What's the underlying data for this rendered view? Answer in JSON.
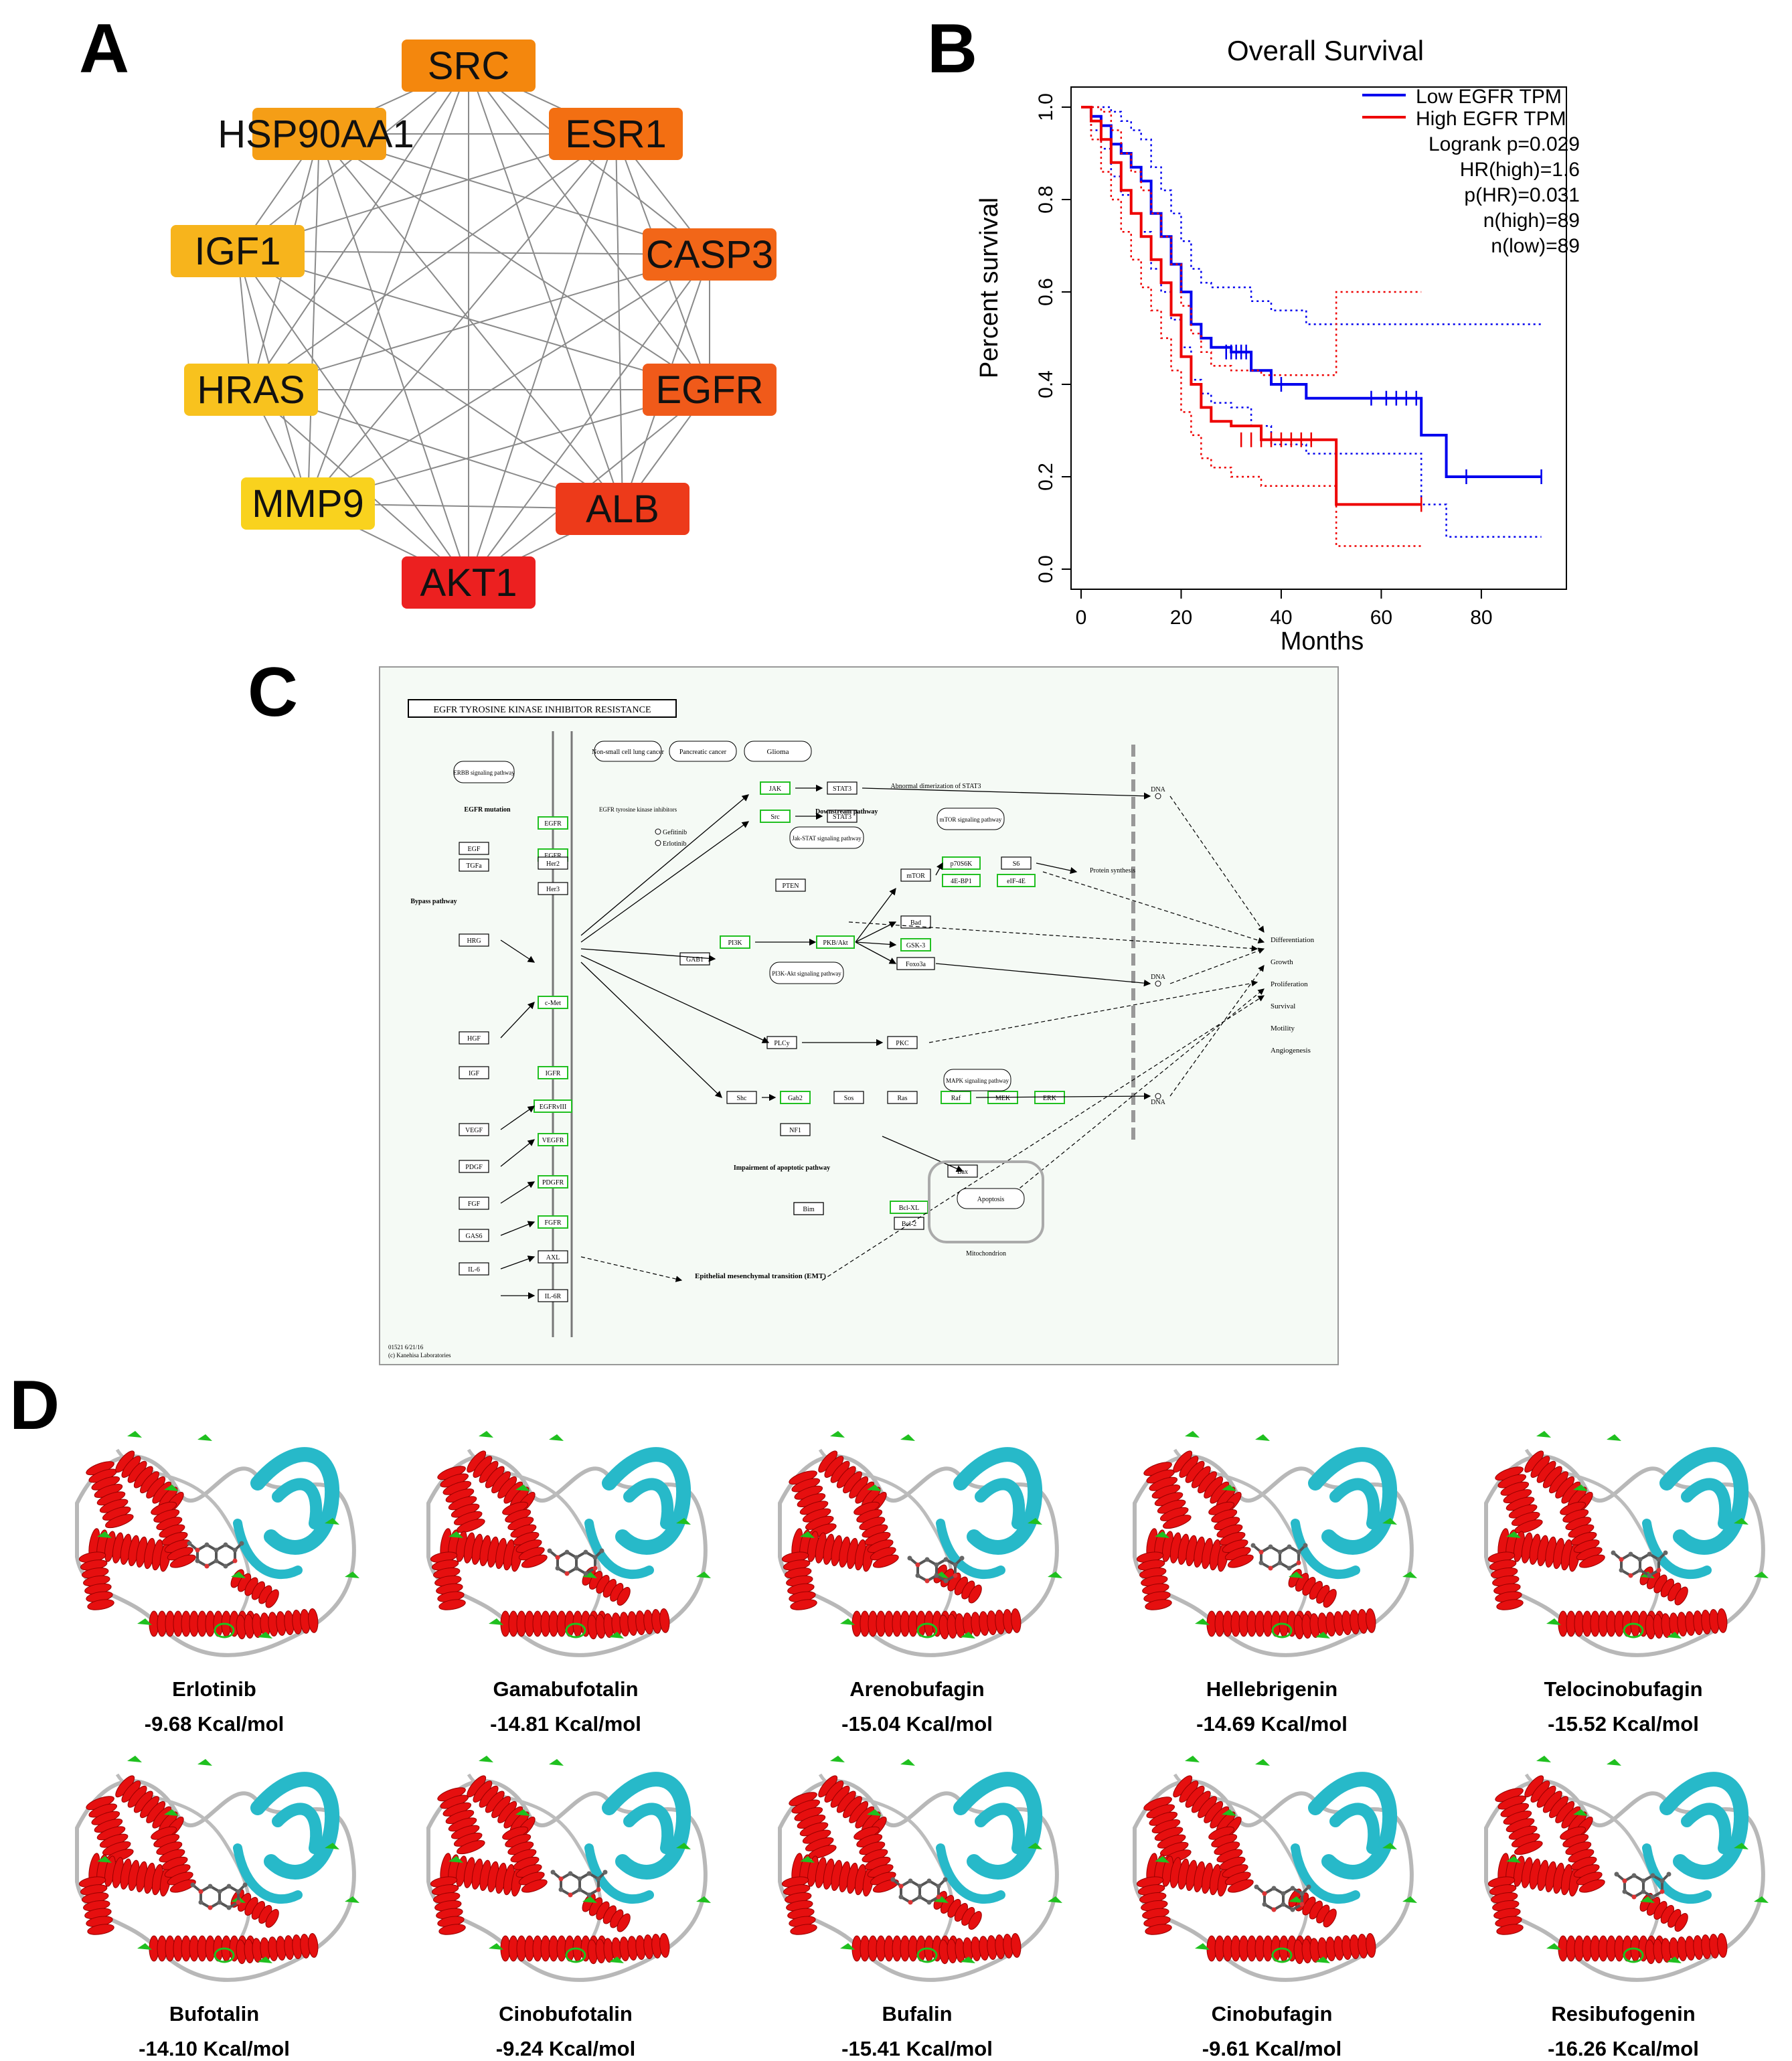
{
  "panels": {
    "A": "A",
    "B": "B",
    "C": "C",
    "D": "D"
  },
  "network": {
    "nodes": [
      {
        "id": "SRC",
        "label": "SRC",
        "color": "#f4870d"
      },
      {
        "id": "ESR1",
        "label": "ESR1",
        "color": "#f36f12"
      },
      {
        "id": "CASP3",
        "label": "CASP3",
        "color": "#f26618"
      },
      {
        "id": "EGFR",
        "label": "EGFR",
        "color": "#f05a1a"
      },
      {
        "id": "ALB",
        "label": "ALB",
        "color": "#ed3a1a"
      },
      {
        "id": "AKT1",
        "label": "AKT1",
        "color": "#ec2020"
      },
      {
        "id": "MMP9",
        "label": "MMP9",
        "color": "#f9d21e"
      },
      {
        "id": "HRAS",
        "label": "HRAS",
        "color": "#f8c21e"
      },
      {
        "id": "IGF1",
        "label": "IGF1",
        "color": "#f7b41c"
      },
      {
        "id": "HSP90AA1",
        "label": "HSP90AA1",
        "color": "#f59e16"
      }
    ]
  },
  "chart_data": {
    "type": "line",
    "title": "Overall Survival",
    "xlabel": "Months",
    "ylabel": "Percent survival",
    "xlim": [
      0,
      95
    ],
    "ylim": [
      0,
      1.0
    ],
    "xticks": [
      0,
      20,
      40,
      60,
      80
    ],
    "yticks": [
      0.0,
      0.2,
      0.4,
      0.6,
      0.8,
      1.0
    ],
    "legend_position": "top-right",
    "annotations": [
      "Logrank p=0.029",
      "HR(high)=1.6",
      "p(HR)=0.031",
      "n(high)=89",
      "n(low)=89"
    ],
    "series": [
      {
        "name": "Low EGFR TPM",
        "color": "#0000ee",
        "x": [
          0,
          2,
          4,
          6,
          8,
          10,
          12,
          14,
          16,
          18,
          20,
          22,
          24,
          26,
          30,
          34,
          38,
          45,
          55,
          68,
          73,
          78,
          92
        ],
        "y": [
          1.0,
          0.98,
          0.96,
          0.92,
          0.9,
          0.87,
          0.84,
          0.77,
          0.72,
          0.66,
          0.6,
          0.53,
          0.5,
          0.48,
          0.47,
          0.43,
          0.4,
          0.37,
          0.37,
          0.29,
          0.2,
          0.2,
          0.2
        ],
        "ci_upper": [
          1.0,
          1.0,
          1.0,
          0.99,
          0.97,
          0.95,
          0.93,
          0.87,
          0.82,
          0.77,
          0.71,
          0.65,
          0.62,
          0.61,
          0.61,
          0.58,
          0.56,
          0.53,
          0.53,
          0.53,
          0.53,
          0.53,
          0.53
        ],
        "ci_lower": [
          1.0,
          0.95,
          0.91,
          0.85,
          0.81,
          0.77,
          0.73,
          0.65,
          0.6,
          0.54,
          0.48,
          0.41,
          0.38,
          0.36,
          0.35,
          0.31,
          0.27,
          0.25,
          0.25,
          0.14,
          0.07,
          0.07,
          0.07
        ]
      },
      {
        "name": "High EGFR TPM",
        "color": "#ee0000",
        "x": [
          0,
          2,
          4,
          6,
          8,
          10,
          12,
          14,
          16,
          18,
          20,
          22,
          24,
          26,
          30,
          36,
          42,
          51,
          60,
          68
        ],
        "y": [
          1.0,
          0.97,
          0.93,
          0.88,
          0.82,
          0.77,
          0.72,
          0.67,
          0.62,
          0.55,
          0.46,
          0.4,
          0.35,
          0.32,
          0.31,
          0.28,
          0.28,
          0.14,
          0.14,
          0.14
        ],
        "ci_upper": [
          1.0,
          1.0,
          0.99,
          0.95,
          0.9,
          0.86,
          0.82,
          0.77,
          0.72,
          0.66,
          0.57,
          0.51,
          0.47,
          0.44,
          0.43,
          0.42,
          0.42,
          0.6,
          0.6,
          0.6
        ],
        "ci_lower": [
          1.0,
          0.93,
          0.86,
          0.8,
          0.73,
          0.67,
          0.61,
          0.56,
          0.5,
          0.43,
          0.34,
          0.29,
          0.24,
          0.22,
          0.2,
          0.18,
          0.18,
          0.05,
          0.05,
          0.05
        ]
      }
    ],
    "censor_marks": {
      "Low EGFR TPM": [
        [
          29,
          0.47
        ],
        [
          30,
          0.47
        ],
        [
          31,
          0.47
        ],
        [
          32,
          0.47
        ],
        [
          33,
          0.47
        ],
        [
          40,
          0.4
        ],
        [
          58,
          0.37
        ],
        [
          61,
          0.37
        ],
        [
          63,
          0.37
        ],
        [
          65,
          0.37
        ],
        [
          67,
          0.37
        ],
        [
          77,
          0.2
        ],
        [
          92,
          0.2
        ]
      ],
      "High EGFR TPM": [
        [
          32,
          0.28
        ],
        [
          34,
          0.28
        ],
        [
          36,
          0.28
        ],
        [
          38,
          0.28
        ],
        [
          40,
          0.28
        ],
        [
          42,
          0.28
        ],
        [
          44,
          0.28
        ],
        [
          46,
          0.28
        ],
        [
          68,
          0.14
        ]
      ]
    }
  },
  "kegg": {
    "title": "EGFR TYROSINE KINASE INHIBITOR RESISTANCE",
    "footer1": "01521 6/21/16",
    "footer2": "(c) Kanehisa Laboratories",
    "cancers": [
      "Non-small cell lung cancer",
      "Pancreatic cancer",
      "Glioma"
    ],
    "outcomes": [
      "Differentiation",
      "Growth",
      "Proliferation",
      "Survival",
      "Motility",
      "Angiogenesis"
    ],
    "labels": {
      "erbb": "ERBB signaling pathway",
      "egfr_mutation": "EGFR mutation",
      "bypass": "Bypass pathway",
      "tki": "EGFR tyrosine kinase inhibitors",
      "gefitinib": "Gefitinib",
      "erlotinib": "Erlotinib",
      "emt": "Epithelial mesenchymal transition (EMT)",
      "impairment": "Impairment of apoptotic pathway",
      "apoptosis": "Apoptosis",
      "mitochondrion": "Mitochondrion",
      "mtor_path": "mTOR signaling pathway",
      "mapk_path": "MAPK signaling pathway",
      "jak_path": "Jak-STAT signaling pathway",
      "pi3k_path": "PI3K-Akt signaling pathway",
      "downstream": "Downstream pathway",
      "stat3_abn": "Abnormal dimerization of STAT3",
      "protein_synth": "Protein synthesis",
      "dna": "DNA"
    },
    "genes": [
      "EGFR",
      "EGF",
      "TGFa",
      "HRG",
      "HGF",
      "IGF",
      "VEGF",
      "PDGF",
      "FGF",
      "GAS6",
      "IL-6",
      "EGFR",
      "Her2",
      "Her3",
      "c-Met",
      "IGFR",
      "EGFRvIII",
      "VEGFR",
      "PDGFR",
      "FGFR",
      "AXL",
      "IL-6R",
      "JAK",
      "Src",
      "STAT3",
      "STAT3",
      "PI3K",
      "PTEN",
      "PKB/Akt",
      "mTOR",
      "p70S6K",
      "S6",
      "4E-BP1",
      "eIF-4E",
      "Bad",
      "GSK-3",
      "Foxo3a",
      "Bim",
      "PLCy",
      "PKC",
      "Shc",
      "Gab2",
      "Sos",
      "Ras",
      "Raf",
      "MEK",
      "ERK",
      "NF1",
      "Bax",
      "Bcl-XL",
      "Bcl-2",
      "Bim",
      "GAB1"
    ]
  },
  "docking": [
    {
      "name": "Erlotinib",
      "energy": "-9.68 Kcal/mol"
    },
    {
      "name": "Gamabufotalin",
      "energy": "-14.81 Kcal/mol"
    },
    {
      "name": "Arenobufagin",
      "energy": "-15.04 Kcal/mol"
    },
    {
      "name": "Hellebrigenin",
      "energy": "-14.69 Kcal/mol"
    },
    {
      "name": "Telocinobufagin",
      "energy": "-15.52  Kcal/mol"
    },
    {
      "name": "Bufotalin",
      "energy": "-14.10 Kcal/mol"
    },
    {
      "name": "Cinobufotalin",
      "energy": "-9.24 Kcal/mol"
    },
    {
      "name": "Bufalin",
      "energy": "-15.41 Kcal/mol"
    },
    {
      "name": "Cinobufagin",
      "energy": "-9.61 Kcal/mol"
    },
    {
      "name": "Resibufogenin",
      "energy": "-16.26 Kcal/mol"
    }
  ]
}
